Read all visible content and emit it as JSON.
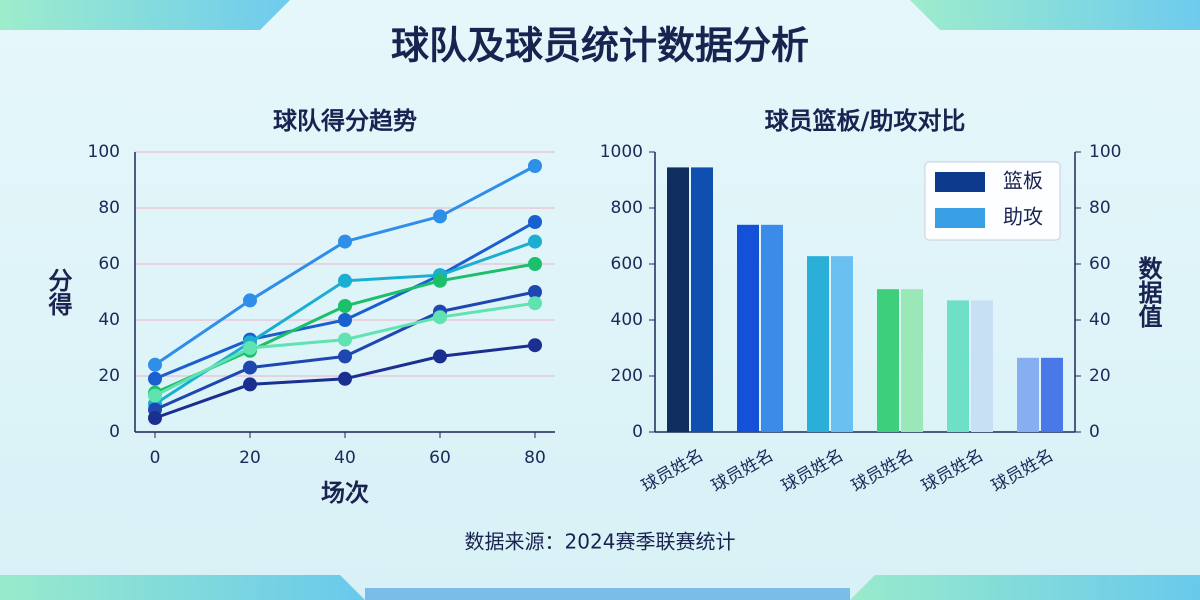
{
  "title": "球队及球员统计数据分析",
  "source": "数据来源：2024赛季联赛统计",
  "chart_data": [
    {
      "type": "line",
      "title": "球队得分趋势",
      "xlabel": "场次",
      "ylabel": "分得",
      "x": [
        0,
        20,
        40,
        60,
        80
      ],
      "xlim": [
        0,
        80
      ],
      "xticks": [
        0,
        20,
        40,
        60,
        80
      ],
      "ylim": [
        0,
        100
      ],
      "yticks": [
        0,
        20,
        40,
        60,
        80,
        100
      ],
      "grid": true,
      "series": [
        {
          "color": "#2e8ee8",
          "values": [
            24,
            47,
            68,
            77,
            95
          ]
        },
        {
          "color": "#1a5fd0",
          "values": [
            19,
            33,
            40,
            56,
            75
          ]
        },
        {
          "color": "#1aaed0",
          "values": [
            10,
            32,
            54,
            56,
            68
          ]
        },
        {
          "color": "#1cbf6a",
          "values": [
            14,
            29,
            45,
            54,
            60
          ]
        },
        {
          "color": "#1f47b0",
          "values": [
            8,
            23,
            27,
            43,
            50
          ]
        },
        {
          "color": "#5fe3b0",
          "values": [
            13,
            30,
            33,
            41,
            46
          ]
        },
        {
          "color": "#1a2f8f",
          "values": [
            5,
            17,
            19,
            27,
            31
          ]
        }
      ]
    },
    {
      "type": "bar",
      "title": "球员篮板/助攻对比",
      "y2label": "数据值",
      "legend": "top-right",
      "categories": [
        "球员姓名",
        "球员姓名",
        "球员姓名",
        "球员姓名",
        "球员姓名",
        "球员姓名"
      ],
      "ylim": [
        0,
        1000
      ],
      "yticks": [
        0,
        200,
        400,
        600,
        800,
        1000
      ],
      "y2lim": [
        0,
        100
      ],
      "y2ticks": [
        0,
        20,
        40,
        60,
        80,
        100
      ],
      "grid": false,
      "series": [
        {
          "name": "篮板",
          "color": "#0d3a8c",
          "colors": [
            "#0f2d5e",
            "#1450d8",
            "#2ab0d8",
            "#3ecf7a",
            "#6ee0c8",
            "#86aef0"
          ],
          "values": [
            945,
            740,
            628,
            510,
            470,
            265
          ]
        },
        {
          "name": "助攻",
          "color": "#3aa0e6",
          "axis": "y2",
          "colors": [
            "#0f4fb0",
            "#3a8ce8",
            "#6ac0f0",
            "#9ae8b8",
            "#c8e0f4",
            "#4a78e8"
          ],
          "values": [
            94.5,
            74,
            62.8,
            51,
            47,
            26.5
          ]
        }
      ]
    }
  ]
}
